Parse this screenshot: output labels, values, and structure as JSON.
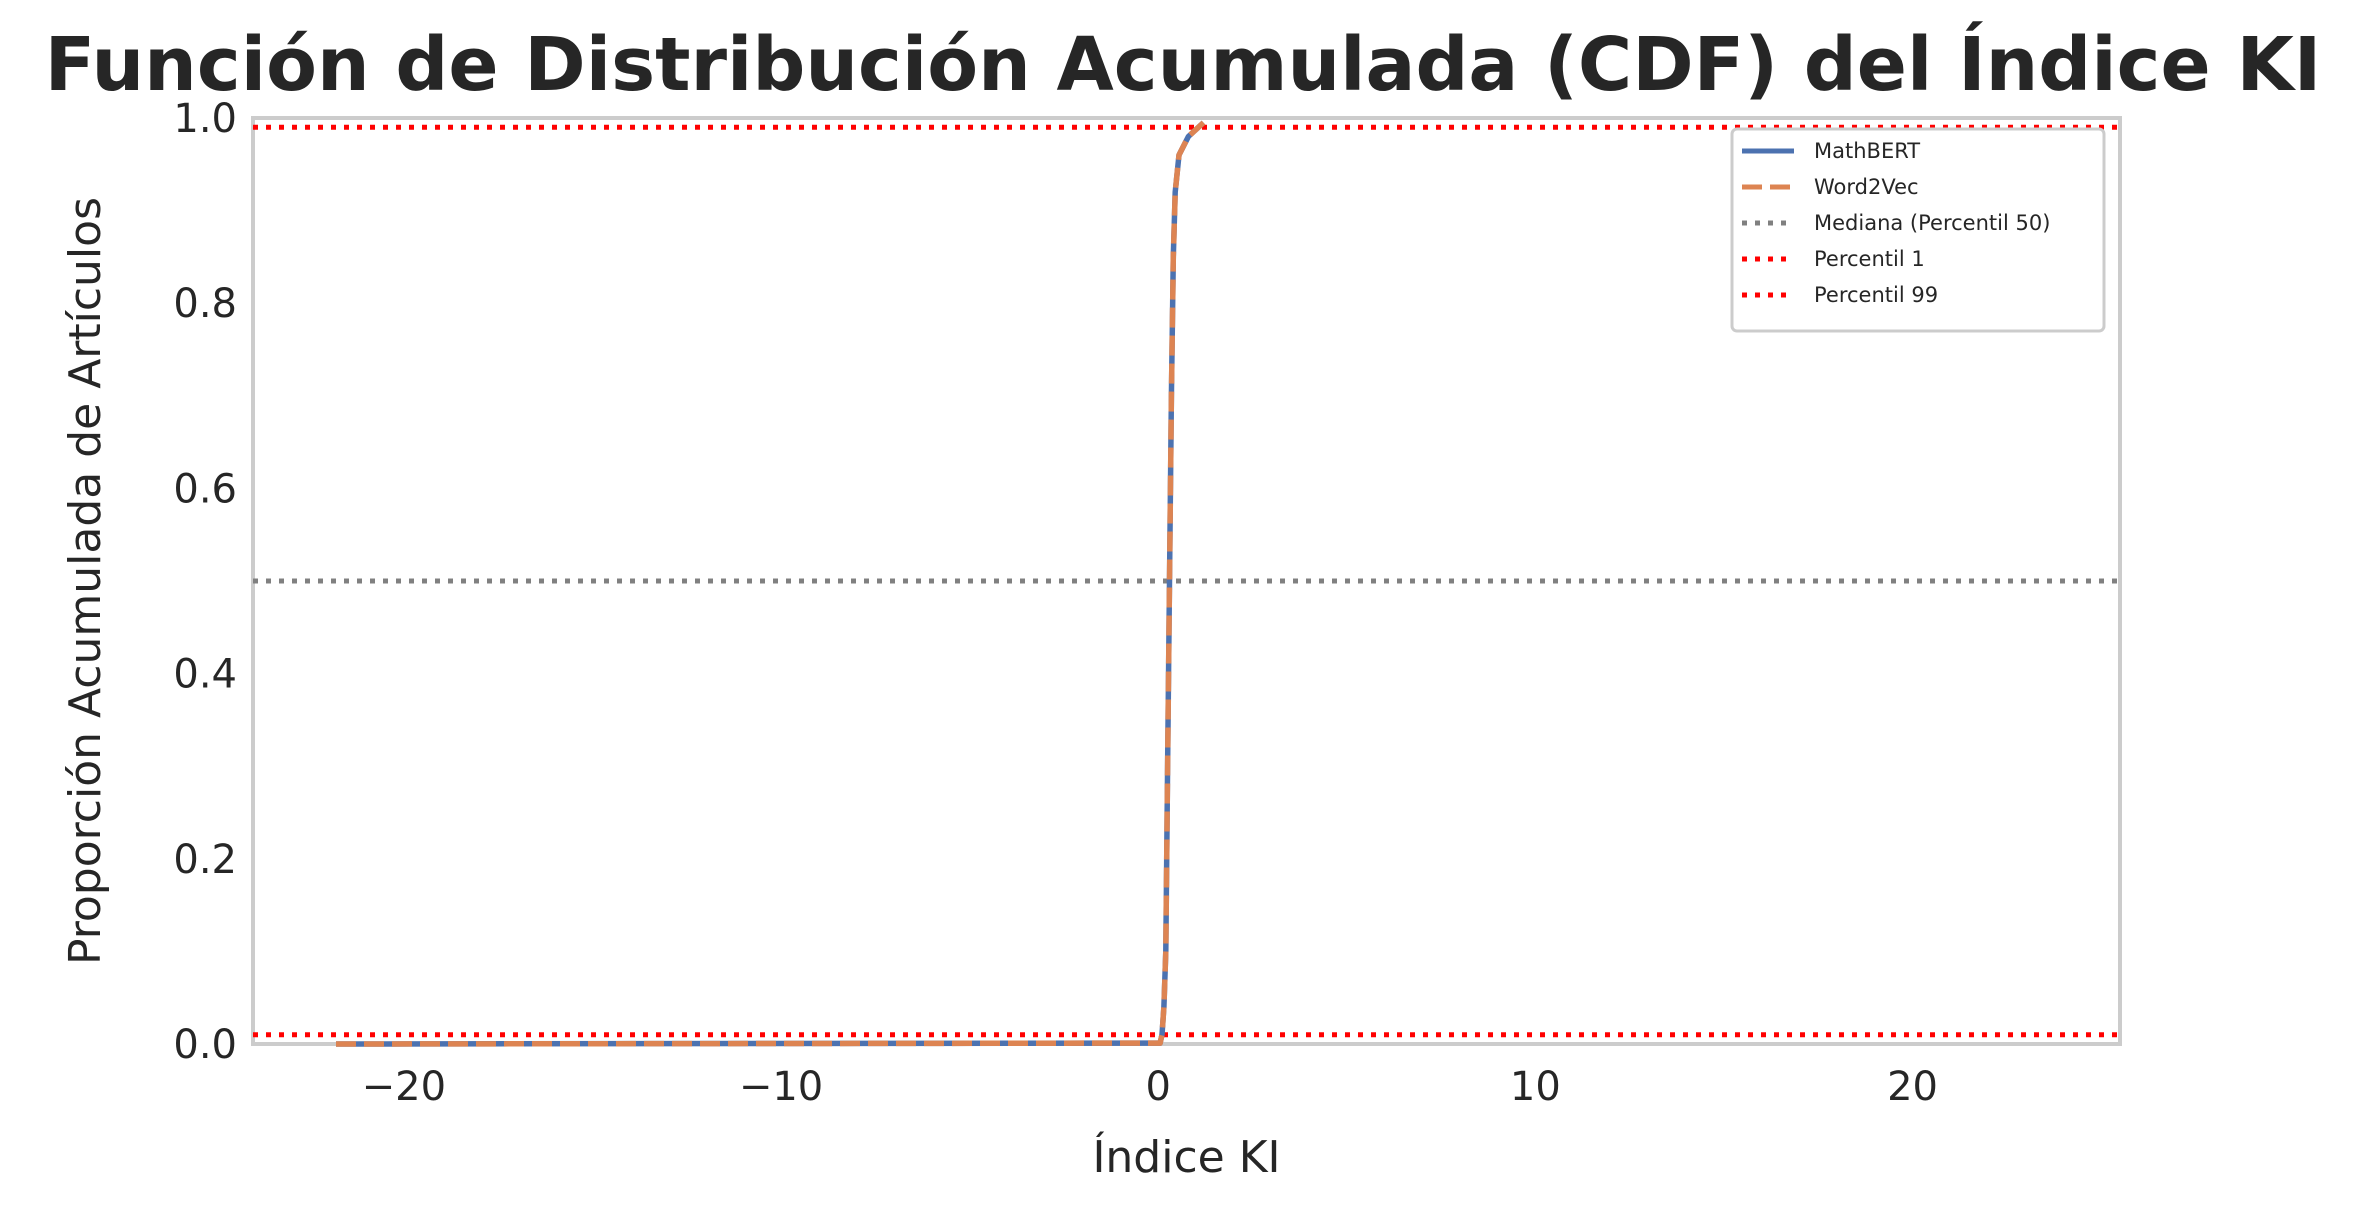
{
  "chart_data": {
    "type": "line",
    "title": "Función de Distribución Acumulada (CDF) del Índice KI",
    "xlabel": "Índice KI",
    "ylabel": "Proporción Acumulada de Artículos",
    "xlim": [
      -24,
      25.5
    ],
    "ylim": [
      0,
      1
    ],
    "xticks": [
      -20,
      -10,
      0,
      10,
      20
    ],
    "xtick_labels": [
      "−20",
      "−10",
      "0",
      "10",
      "20"
    ],
    "yticks": [
      0.0,
      0.2,
      0.4,
      0.6,
      0.8,
      1.0
    ],
    "ytick_labels": [
      "0.0",
      "0.2",
      "0.4",
      "0.6",
      "0.8",
      "1.0"
    ],
    "grid": false,
    "legend_position": "top-right",
    "series": [
      {
        "name": "MathBERT",
        "style": "solid",
        "color": "#4c72b0",
        "points": [
          [
            -21.8,
            0.0
          ],
          [
            0.05,
            0.001
          ],
          [
            0.1,
            0.01
          ],
          [
            0.15,
            0.04
          ],
          [
            0.2,
            0.1
          ],
          [
            0.25,
            0.3
          ],
          [
            0.3,
            0.5
          ],
          [
            0.35,
            0.7
          ],
          [
            0.4,
            0.85
          ],
          [
            0.45,
            0.92
          ],
          [
            0.55,
            0.96
          ],
          [
            0.8,
            0.98
          ],
          [
            1.2,
            0.995
          ]
        ]
      },
      {
        "name": "Word2Vec",
        "style": "dashed",
        "color": "#dd8452",
        "points": [
          [
            -21.8,
            0.0
          ],
          [
            0.05,
            0.001
          ],
          [
            0.1,
            0.01
          ],
          [
            0.15,
            0.04
          ],
          [
            0.2,
            0.1
          ],
          [
            0.25,
            0.3
          ],
          [
            0.3,
            0.5
          ],
          [
            0.35,
            0.7
          ],
          [
            0.4,
            0.85
          ],
          [
            0.45,
            0.92
          ],
          [
            0.55,
            0.96
          ],
          [
            0.8,
            0.98
          ],
          [
            1.2,
            0.995
          ]
        ]
      }
    ],
    "reference_lines": [
      {
        "name": "Mediana (Percentil 50)",
        "y": 0.5,
        "style": "dotted",
        "color": "#808080"
      },
      {
        "name": "Percentil 1",
        "y": 0.01,
        "style": "dotted",
        "color": "#ff0000"
      },
      {
        "name": "Percentil 99",
        "y": 0.99,
        "style": "dotted",
        "color": "#ff0000"
      }
    ]
  }
}
